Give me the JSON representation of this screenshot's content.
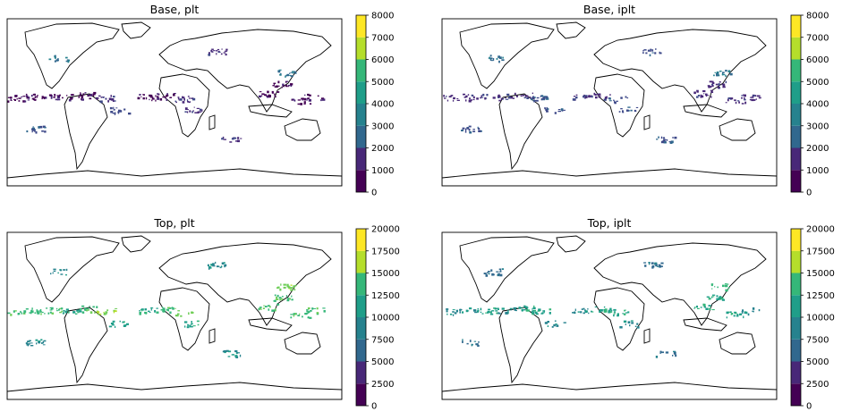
{
  "colors": {
    "levels": [
      "#440154",
      "#482878",
      "#3e4989",
      "#31688e",
      "#26828e",
      "#1f9e89",
      "#35b779",
      "#6ece58",
      "#b5de2b",
      "#fde725"
    ],
    "coast": "#000000",
    "frame": "#000000"
  },
  "chart_data": [
    {
      "type": "heatmap",
      "title": "Base, plt",
      "projection": "plate-carree",
      "xlim": [
        -180,
        180
      ],
      "ylim": [
        -90,
        90
      ],
      "colorbar": {
        "ticks": [
          "0",
          "1000",
          "2000",
          "3000",
          "4000",
          "5000",
          "6000",
          "7000",
          "8000"
        ],
        "range": [
          0,
          8000
        ],
        "levels": 8
      },
      "clusters": [
        {
          "lon": -170,
          "lat": 5,
          "level": 0
        },
        {
          "lon": -150,
          "lat": 6,
          "level": 0
        },
        {
          "lon": -130,
          "lat": 6,
          "level": 0
        },
        {
          "lon": -110,
          "lat": 6,
          "level": 0
        },
        {
          "lon": -92,
          "lat": 8,
          "level": 0
        },
        {
          "lon": -75,
          "lat": 5,
          "level": 1
        },
        {
          "lon": -30,
          "lat": 6,
          "level": 0
        },
        {
          "lon": -10,
          "lat": 7,
          "level": 0
        },
        {
          "lon": 10,
          "lat": 4,
          "level": 1
        },
        {
          "lon": 100,
          "lat": 10,
          "level": 0
        },
        {
          "lon": 115,
          "lat": 20,
          "level": 0
        },
        {
          "lon": 120,
          "lat": 32,
          "level": 3
        },
        {
          "lon": 135,
          "lat": 2,
          "level": 0
        },
        {
          "lon": 150,
          "lat": 6,
          "level": 0
        },
        {
          "lon": -125,
          "lat": 48,
          "level": 3
        },
        {
          "lon": 45,
          "lat": 55,
          "level": 1
        },
        {
          "lon": -60,
          "lat": -8,
          "level": 2
        },
        {
          "lon": 20,
          "lat": -8,
          "level": 1
        },
        {
          "lon": -150,
          "lat": -28,
          "level": 2
        },
        {
          "lon": 60,
          "lat": -40,
          "level": 1
        }
      ]
    },
    {
      "type": "heatmap",
      "title": "Base, iplt",
      "projection": "plate-carree",
      "xlim": [
        -180,
        180
      ],
      "ylim": [
        -90,
        90
      ],
      "colorbar": {
        "ticks": [
          "0",
          "1000",
          "2000",
          "3000",
          "4000",
          "5000",
          "6000",
          "7000",
          "8000"
        ],
        "range": [
          0,
          8000
        ],
        "levels": 8
      },
      "clusters": [
        {
          "lon": -170,
          "lat": 5,
          "level": 1
        },
        {
          "lon": -150,
          "lat": 6,
          "level": 1
        },
        {
          "lon": -130,
          "lat": 6,
          "level": 1
        },
        {
          "lon": -110,
          "lat": 6,
          "level": 1
        },
        {
          "lon": -92,
          "lat": 8,
          "level": 1
        },
        {
          "lon": -75,
          "lat": 5,
          "level": 2
        },
        {
          "lon": -30,
          "lat": 6,
          "level": 1
        },
        {
          "lon": -10,
          "lat": 7,
          "level": 1
        },
        {
          "lon": 10,
          "lat": 4,
          "level": 2
        },
        {
          "lon": 100,
          "lat": 10,
          "level": 1
        },
        {
          "lon": 115,
          "lat": 20,
          "level": 1
        },
        {
          "lon": 120,
          "lat": 32,
          "level": 3
        },
        {
          "lon": 135,
          "lat": 2,
          "level": 1
        },
        {
          "lon": 150,
          "lat": 6,
          "level": 1
        },
        {
          "lon": -125,
          "lat": 48,
          "level": 3
        },
        {
          "lon": 45,
          "lat": 55,
          "level": 2
        },
        {
          "lon": -60,
          "lat": -8,
          "level": 2
        },
        {
          "lon": 20,
          "lat": -8,
          "level": 2
        },
        {
          "lon": -150,
          "lat": -28,
          "level": 2
        },
        {
          "lon": 60,
          "lat": -40,
          "level": 2
        }
      ]
    },
    {
      "type": "heatmap",
      "title": "Top, plt",
      "projection": "plate-carree",
      "xlim": [
        -180,
        180
      ],
      "ylim": [
        -90,
        90
      ],
      "colorbar": {
        "ticks": [
          "0",
          "2500",
          "5000",
          "7500",
          "10000",
          "12500",
          "15000",
          "17500",
          "20000"
        ],
        "range": [
          0,
          20000
        ],
        "levels": 8
      },
      "clusters": [
        {
          "lon": -170,
          "lat": 5,
          "level": 6
        },
        {
          "lon": -150,
          "lat": 6,
          "level": 6
        },
        {
          "lon": -130,
          "lat": 6,
          "level": 6
        },
        {
          "lon": -110,
          "lat": 6,
          "level": 5
        },
        {
          "lon": -92,
          "lat": 8,
          "level": 6
        },
        {
          "lon": -75,
          "lat": 5,
          "level": 7
        },
        {
          "lon": -30,
          "lat": 6,
          "level": 5
        },
        {
          "lon": -10,
          "lat": 7,
          "level": 6
        },
        {
          "lon": 10,
          "lat": 4,
          "level": 7
        },
        {
          "lon": 100,
          "lat": 10,
          "level": 6
        },
        {
          "lon": 115,
          "lat": 20,
          "level": 6
        },
        {
          "lon": 120,
          "lat": 32,
          "level": 7
        },
        {
          "lon": 135,
          "lat": 2,
          "level": 6
        },
        {
          "lon": 150,
          "lat": 6,
          "level": 6
        },
        {
          "lon": -125,
          "lat": 48,
          "level": 4
        },
        {
          "lon": 45,
          "lat": 55,
          "level": 4
        },
        {
          "lon": -60,
          "lat": -8,
          "level": 5
        },
        {
          "lon": 20,
          "lat": -8,
          "level": 5
        },
        {
          "lon": -150,
          "lat": -28,
          "level": 4
        },
        {
          "lon": 60,
          "lat": -40,
          "level": 4
        }
      ]
    },
    {
      "type": "heatmap",
      "title": "Top, iplt",
      "projection": "plate-carree",
      "xlim": [
        -180,
        180
      ],
      "ylim": [
        -90,
        90
      ],
      "colorbar": {
        "ticks": [
          "0",
          "2500",
          "5000",
          "7500",
          "10000",
          "12500",
          "15000",
          "17500",
          "20000"
        ],
        "range": [
          0,
          20000
        ],
        "levels": 8
      },
      "clusters": [
        {
          "lon": -170,
          "lat": 5,
          "level": 4
        },
        {
          "lon": -150,
          "lat": 6,
          "level": 4
        },
        {
          "lon": -130,
          "lat": 6,
          "level": 5
        },
        {
          "lon": -110,
          "lat": 6,
          "level": 4
        },
        {
          "lon": -92,
          "lat": 8,
          "level": 5
        },
        {
          "lon": -75,
          "lat": 5,
          "level": 5
        },
        {
          "lon": -30,
          "lat": 6,
          "level": 4
        },
        {
          "lon": -10,
          "lat": 7,
          "level": 5
        },
        {
          "lon": 10,
          "lat": 4,
          "level": 5
        },
        {
          "lon": 100,
          "lat": 10,
          "level": 5
        },
        {
          "lon": 115,
          "lat": 20,
          "level": 5
        },
        {
          "lon": 120,
          "lat": 32,
          "level": 6
        },
        {
          "lon": 135,
          "lat": 2,
          "level": 5
        },
        {
          "lon": 150,
          "lat": 6,
          "level": 4
        },
        {
          "lon": -125,
          "lat": 48,
          "level": 3
        },
        {
          "lon": 45,
          "lat": 55,
          "level": 3
        },
        {
          "lon": -60,
          "lat": -8,
          "level": 4
        },
        {
          "lon": 20,
          "lat": -8,
          "level": 4
        },
        {
          "lon": -150,
          "lat": -28,
          "level": 3
        },
        {
          "lon": 60,
          "lat": -40,
          "level": 3
        }
      ]
    }
  ]
}
